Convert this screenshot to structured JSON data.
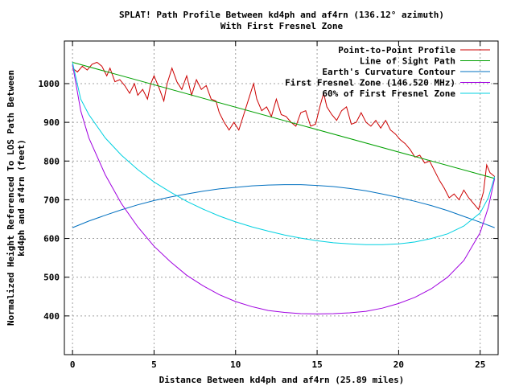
{
  "chart_data": {
    "type": "line",
    "title_line1": "SPLAT! Path Profile Between kd4ph and af4rn (136.12° azimuth)",
    "title_line2": "With First Fresnel Zone",
    "xlabel": "Distance Between kd4ph and af4rn (25.89 miles)",
    "ylabel_line1": "Normalized Height Referenced To LOS Path Between",
    "ylabel_line2": "kd4ph and af4rn (feet)",
    "xlim": [
      -0.5,
      26.1
    ],
    "ylim": [
      300,
      1110
    ],
    "xticks": [
      0,
      5,
      10,
      15,
      20,
      25
    ],
    "yticks": [
      400,
      500,
      600,
      700,
      800,
      900,
      1000
    ],
    "grid": true,
    "legend_position": "top-right",
    "series": [
      {
        "name": "Point-to-Point Profile",
        "color": "#cc0000",
        "points": [
          [
            0,
            1040
          ],
          [
            0.3,
            1030
          ],
          [
            0.6,
            1045
          ],
          [
            0.9,
            1035
          ],
          [
            1.2,
            1050
          ],
          [
            1.5,
            1055
          ],
          [
            1.8,
            1045
          ],
          [
            2.1,
            1020
          ],
          [
            2.3,
            1040
          ],
          [
            2.6,
            1005
          ],
          [
            2.9,
            1010
          ],
          [
            3.2,
            995
          ],
          [
            3.5,
            975
          ],
          [
            3.8,
            1000
          ],
          [
            4.0,
            970
          ],
          [
            4.3,
            985
          ],
          [
            4.6,
            960
          ],
          [
            4.8,
            1000
          ],
          [
            5.0,
            1020
          ],
          [
            5.3,
            990
          ],
          [
            5.6,
            955
          ],
          [
            5.8,
            1000
          ],
          [
            6.1,
            1040
          ],
          [
            6.4,
            1005
          ],
          [
            6.7,
            985
          ],
          [
            7.0,
            1020
          ],
          [
            7.3,
            970
          ],
          [
            7.6,
            1010
          ],
          [
            7.9,
            985
          ],
          [
            8.2,
            995
          ],
          [
            8.5,
            960
          ],
          [
            8.8,
            955
          ],
          [
            9.0,
            925
          ],
          [
            9.3,
            900
          ],
          [
            9.6,
            880
          ],
          [
            9.9,
            900
          ],
          [
            10.2,
            880
          ],
          [
            10.5,
            920
          ],
          [
            10.8,
            960
          ],
          [
            11.1,
            1000
          ],
          [
            11.3,
            960
          ],
          [
            11.6,
            930
          ],
          [
            11.9,
            940
          ],
          [
            12.2,
            915
          ],
          [
            12.5,
            960
          ],
          [
            12.8,
            920
          ],
          [
            13.1,
            915
          ],
          [
            13.4,
            900
          ],
          [
            13.7,
            890
          ],
          [
            14.0,
            925
          ],
          [
            14.3,
            930
          ],
          [
            14.6,
            890
          ],
          [
            14.9,
            895
          ],
          [
            15.2,
            945
          ],
          [
            15.4,
            975
          ],
          [
            15.6,
            940
          ],
          [
            15.9,
            920
          ],
          [
            16.2,
            905
          ],
          [
            16.5,
            930
          ],
          [
            16.8,
            940
          ],
          [
            17.1,
            895
          ],
          [
            17.4,
            900
          ],
          [
            17.7,
            925
          ],
          [
            18.0,
            900
          ],
          [
            18.3,
            890
          ],
          [
            18.6,
            905
          ],
          [
            18.9,
            885
          ],
          [
            19.2,
            905
          ],
          [
            19.5,
            880
          ],
          [
            19.8,
            870
          ],
          [
            20.1,
            855
          ],
          [
            20.4,
            845
          ],
          [
            20.7,
            830
          ],
          [
            21.0,
            810
          ],
          [
            21.3,
            815
          ],
          [
            21.6,
            795
          ],
          [
            21.9,
            800
          ],
          [
            22.2,
            775
          ],
          [
            22.5,
            750
          ],
          [
            22.8,
            730
          ],
          [
            23.1,
            705
          ],
          [
            23.4,
            715
          ],
          [
            23.7,
            700
          ],
          [
            24.0,
            725
          ],
          [
            24.3,
            705
          ],
          [
            24.6,
            690
          ],
          [
            24.9,
            675
          ],
          [
            25.2,
            720
          ],
          [
            25.4,
            790
          ],
          [
            25.6,
            770
          ],
          [
            25.89,
            760
          ]
        ]
      },
      {
        "name": "Line of Sight Path",
        "color": "#00a000",
        "points": [
          [
            0,
            1055
          ],
          [
            25.89,
            755
          ]
        ]
      },
      {
        "name": "Earth's Curvature Contour",
        "color": "#0070c0",
        "points": [
          [
            0,
            628
          ],
          [
            1,
            645
          ],
          [
            2,
            660
          ],
          [
            3,
            674
          ],
          [
            4,
            687
          ],
          [
            5,
            698
          ],
          [
            6,
            707
          ],
          [
            7,
            715
          ],
          [
            8,
            722
          ],
          [
            9,
            728
          ],
          [
            10,
            732
          ],
          [
            11,
            736
          ],
          [
            12,
            738
          ],
          [
            13,
            739
          ],
          [
            14,
            739
          ],
          [
            15,
            737
          ],
          [
            16,
            734
          ],
          [
            17,
            729
          ],
          [
            18,
            723
          ],
          [
            19,
            715
          ],
          [
            20,
            706
          ],
          [
            21,
            696
          ],
          [
            22,
            685
          ],
          [
            23,
            672
          ],
          [
            24,
            657
          ],
          [
            25,
            642
          ],
          [
            25.89,
            628
          ]
        ]
      },
      {
        "name": "First Fresnel Zone (146.520 MHz)",
        "color": "#a000e0",
        "points": [
          [
            0,
            1050
          ],
          [
            0.5,
            930
          ],
          [
            1,
            860
          ],
          [
            2,
            765
          ],
          [
            3,
            690
          ],
          [
            4,
            630
          ],
          [
            5,
            580
          ],
          [
            6,
            540
          ],
          [
            7,
            505
          ],
          [
            8,
            478
          ],
          [
            9,
            455
          ],
          [
            10,
            437
          ],
          [
            11,
            424
          ],
          [
            12,
            414
          ],
          [
            13,
            409
          ],
          [
            14,
            406
          ],
          [
            15,
            405
          ],
          [
            16,
            406
          ],
          [
            17,
            408
          ],
          [
            18,
            412
          ],
          [
            19,
            420
          ],
          [
            20,
            432
          ],
          [
            21,
            448
          ],
          [
            22,
            470
          ],
          [
            23,
            500
          ],
          [
            24,
            543
          ],
          [
            25,
            615
          ],
          [
            25.5,
            680
          ],
          [
            25.89,
            755
          ]
        ]
      },
      {
        "name": "60% of First Fresnel Zone",
        "color": "#00d0e0",
        "points": [
          [
            0,
            1055
          ],
          [
            0.5,
            960
          ],
          [
            1,
            920
          ],
          [
            2,
            860
          ],
          [
            3,
            815
          ],
          [
            4,
            778
          ],
          [
            5,
            746
          ],
          [
            6,
            720
          ],
          [
            7,
            696
          ],
          [
            8,
            676
          ],
          [
            9,
            658
          ],
          [
            10,
            643
          ],
          [
            11,
            630
          ],
          [
            12,
            619
          ],
          [
            13,
            609
          ],
          [
            14,
            601
          ],
          [
            15,
            594
          ],
          [
            16,
            589
          ],
          [
            17,
            586
          ],
          [
            18,
            584
          ],
          [
            19,
            584
          ],
          [
            20,
            586
          ],
          [
            21,
            591
          ],
          [
            22,
            600
          ],
          [
            23,
            612
          ],
          [
            24,
            632
          ],
          [
            25,
            666
          ],
          [
            25.5,
            705
          ],
          [
            25.89,
            760
          ]
        ]
      }
    ]
  }
}
